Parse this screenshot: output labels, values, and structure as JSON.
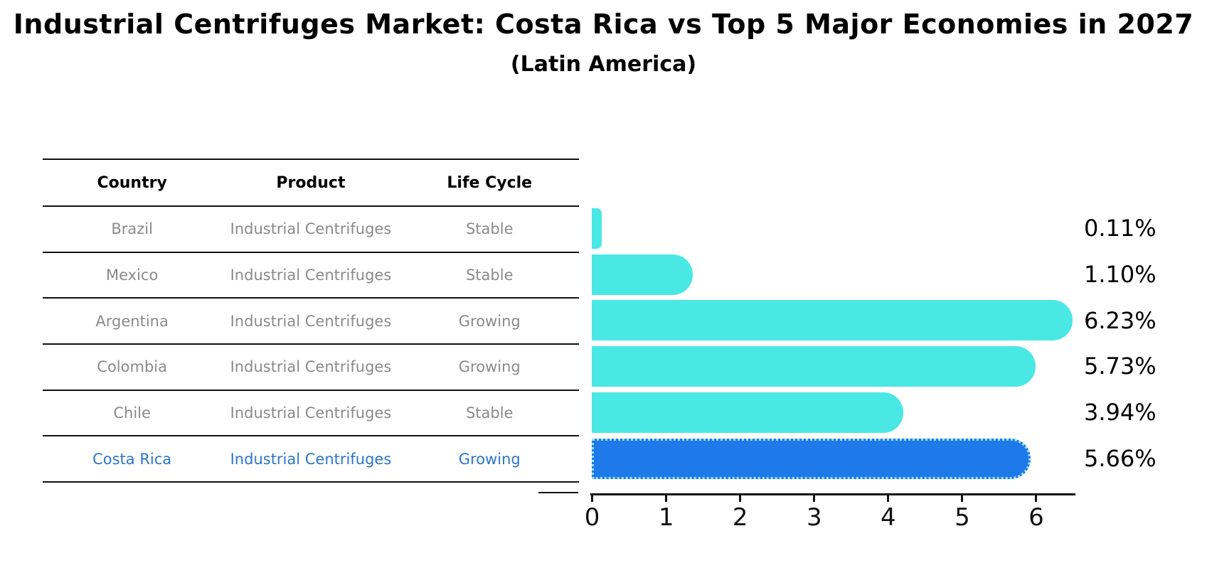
{
  "title": "Industrial Centrifuges Market: Costa Rica vs Top 5 Major Economies in 2027",
  "subtitle": "(Latin America)",
  "table": {
    "headers": [
      "Country",
      "Product",
      "Life Cycle"
    ],
    "rows": [
      {
        "country": "Brazil",
        "product": "Industrial Centrifuges",
        "life_cycle": "Stable",
        "highlight": false
      },
      {
        "country": "Mexico",
        "product": "Industrial Centrifuges",
        "life_cycle": "Stable",
        "highlight": false
      },
      {
        "country": "Argentina",
        "product": "Industrial Centrifuges",
        "life_cycle": "Growing",
        "highlight": false
      },
      {
        "country": "Colombia",
        "product": "Industrial Centrifuges",
        "life_cycle": "Growing",
        "highlight": false
      },
      {
        "country": "Chile",
        "product": "Industrial Centrifuges",
        "life_cycle": "Stable",
        "highlight": false
      },
      {
        "country": "Costa Rica",
        "product": "Industrial Centrifuges",
        "life_cycle": "Growing",
        "highlight": true
      }
    ]
  },
  "chart_data": {
    "type": "bar",
    "orientation": "horizontal",
    "categories": [
      "Brazil",
      "Mexico",
      "Argentina",
      "Colombia",
      "Chile",
      "Costa Rica"
    ],
    "values": [
      0.11,
      1.1,
      6.23,
      5.73,
      3.94,
      5.66
    ],
    "value_labels": [
      "0.11%",
      "1.10%",
      "6.23%",
      "5.73%",
      "3.94%",
      "5.66%"
    ],
    "title": "Industrial Centrifuges Market: Costa Rica vs Top 5 Major Economies in 2027",
    "subtitle": "(Latin America)",
    "xlabel": "",
    "ylabel": "",
    "xlim": [
      0,
      6.5
    ],
    "xticks": [
      0,
      1,
      2,
      3,
      4,
      5,
      6
    ],
    "grid": false,
    "legend": false,
    "highlight_index": 5
  },
  "colors": {
    "bar": "#4ae8e4",
    "highlight_bar": "#1e7ae8",
    "highlight_border": "#9ee3f5",
    "highlight_text": "#2b76c9",
    "table_text": "#8a8a8a",
    "line": "#111111"
  }
}
